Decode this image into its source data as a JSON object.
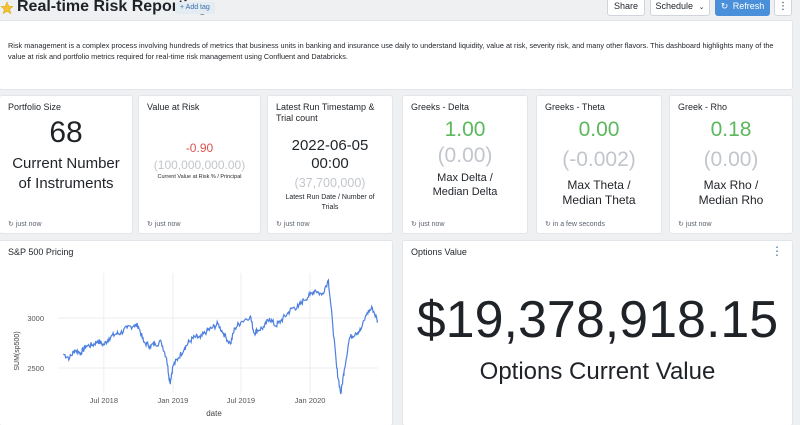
{
  "header": {
    "title": "Real-time Risk Reporting",
    "add_tag": "+ Add tag",
    "share": "Share",
    "schedule": "Schedule",
    "refresh": "Refresh"
  },
  "description": "Risk management is a complex process involving hundreds of metrics that business units in banking and insurance use daily to understand liquidity, value at risk, severity risk, and many other flavors. This dashboard highlights many of the value at risk and portfolio metrics required for real-time risk management using Confluent and Databricks.",
  "counters": [
    {
      "title": "Portfolio Size",
      "value": "68",
      "label": "Current Number of Instruments",
      "foot": "just now"
    },
    {
      "title": "Value at Risk",
      "value": "-0.90",
      "secondary": "(100,000,000.00)",
      "label": "Current Value at Risk % / Principal",
      "foot": "just now"
    },
    {
      "title": "Latest Run Timestamp & Trial count",
      "value": "2022-06-05 00:00",
      "secondary": "(37,700,000)",
      "label": "Latest Run Date / Number of Trials",
      "foot": "just now"
    },
    {
      "title": "Greeks - Delta",
      "value": "1.00",
      "secondary": "(0.00)",
      "label": "Max Delta / Median Delta",
      "foot": "just now"
    },
    {
      "title": "Greeks - Theta",
      "value": "0.00",
      "secondary": "(-0.002)",
      "label": "Max Theta / Median Theta",
      "foot": "in a few seconds"
    },
    {
      "title": "Greek - Rho",
      "value": "0.18",
      "secondary": "(0.00)",
      "label": "Max Rho / Median Rho",
      "foot": "just now"
    }
  ],
  "options": {
    "title": "Options Value",
    "value": "$19,378,918.15",
    "label": "Options Current Value"
  },
  "colors": {
    "accent": "#4a8fd9",
    "line": "#4c7fe0",
    "red": "#d9534f",
    "green": "#5cb85c"
  },
  "chart_data": {
    "type": "line",
    "title": "S&P 500 Pricing",
    "xlabel": "date",
    "ylabel": "SUM(sp500)",
    "x_ticks": [
      "Jul 2018",
      "Jan 2019",
      "Jul 2019",
      "Jan 2020"
    ],
    "y_ticks": [
      2500,
      3000
    ],
    "xlim": [
      "2018-03-01",
      "2020-06-30"
    ],
    "ylim": [
      2250,
      3450
    ],
    "grid": true,
    "series": [
      {
        "x": [
          "2018-03-15",
          "2018-04-01",
          "2018-04-15",
          "2018-05-01",
          "2018-05-15",
          "2018-06-01",
          "2018-06-15",
          "2018-07-01",
          "2018-07-15",
          "2018-08-01",
          "2018-08-15",
          "2018-09-01",
          "2018-09-20",
          "2018-10-01",
          "2018-10-15",
          "2018-11-01",
          "2018-11-15",
          "2018-12-01",
          "2018-12-15",
          "2018-12-24",
          "2019-01-01",
          "2019-01-15",
          "2019-02-01",
          "2019-02-15",
          "2019-03-01",
          "2019-03-15",
          "2019-04-01",
          "2019-04-15",
          "2019-05-01",
          "2019-05-15",
          "2019-06-03",
          "2019-06-15",
          "2019-07-01",
          "2019-07-26",
          "2019-08-05",
          "2019-08-15",
          "2019-09-01",
          "2019-09-15",
          "2019-10-01",
          "2019-10-15",
          "2019-11-01",
          "2019-11-15",
          "2019-12-01",
          "2019-12-15",
          "2020-01-01",
          "2020-01-15",
          "2020-02-01",
          "2020-02-19",
          "2020-03-01",
          "2020-03-12",
          "2020-03-23",
          "2020-04-01",
          "2020-04-15",
          "2020-05-01",
          "2020-05-15",
          "2020-06-01",
          "2020-06-15",
          "2020-06-30"
        ],
        "y": [
          2640,
          2600,
          2680,
          2650,
          2720,
          2730,
          2770,
          2730,
          2800,
          2840,
          2850,
          2900,
          2930,
          2920,
          2760,
          2720,
          2740,
          2760,
          2600,
          2350,
          2520,
          2600,
          2700,
          2770,
          2810,
          2800,
          2870,
          2900,
          2940,
          2850,
          2740,
          2900,
          2960,
          3020,
          2850,
          2880,
          2910,
          3000,
          2920,
          2970,
          3040,
          3100,
          3110,
          3180,
          3230,
          3280,
          3230,
          3380,
          2950,
          2500,
          2240,
          2480,
          2800,
          2850,
          2880,
          3050,
          3100,
          2960
        ]
      }
    ]
  }
}
